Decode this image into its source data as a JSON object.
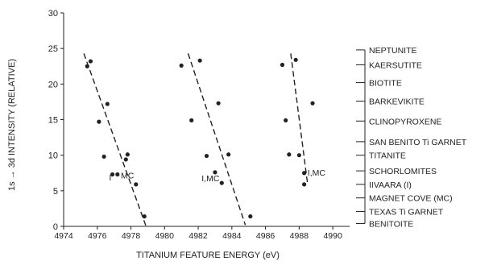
{
  "chart_data": {
    "type": "scatter",
    "title": "",
    "xlabel": "TITANIUM FEATURE ENERGY (eV)",
    "ylabel": "1s → 3d INTENSITY (RELATIVE)",
    "xlim": [
      4974,
      4991
    ],
    "ylim": [
      0,
      30
    ],
    "xticks": [
      4974,
      4976,
      4978,
      4980,
      4982,
      4984,
      4986,
      4988,
      4990
    ],
    "yticks": [
      0,
      5,
      10,
      15,
      20,
      25,
      30
    ],
    "grid": false,
    "series": [
      {
        "points": [
          {
            "x": 4975.4,
            "y": 22.5
          },
          {
            "x": 4975.6,
            "y": 23.2
          },
          {
            "x": 4976.1,
            "y": 14.7
          },
          {
            "x": 4976.6,
            "y": 17.2
          },
          {
            "x": 4976.4,
            "y": 9.8
          },
          {
            "x": 4976.9,
            "y": 7.3
          },
          {
            "x": 4977.2,
            "y": 7.3
          },
          {
            "x": 4977.8,
            "y": 10.1
          },
          {
            "x": 4977.7,
            "y": 9.4
          },
          {
            "x": 4978.3,
            "y": 5.9
          },
          {
            "x": 4978.8,
            "y": 1.4
          }
        ],
        "fit": [
          {
            "x": 4975.2,
            "y": 24.3
          },
          {
            "x": 4978.9,
            "y": 0.0
          }
        ]
      },
      {
        "points": [
          {
            "x": 4981.0,
            "y": 22.6
          },
          {
            "x": 4982.1,
            "y": 23.3
          },
          {
            "x": 4981.6,
            "y": 14.9
          },
          {
            "x": 4983.2,
            "y": 17.3
          },
          {
            "x": 4982.5,
            "y": 9.9
          },
          {
            "x": 4983.0,
            "y": 7.6
          },
          {
            "x": 4983.8,
            "y": 10.1
          },
          {
            "x": 4983.4,
            "y": 6.1
          },
          {
            "x": 4985.1,
            "y": 1.4
          }
        ],
        "fit": [
          {
            "x": 4981.4,
            "y": 24.3
          },
          {
            "x": 4984.8,
            "y": 0.2
          }
        ]
      },
      {
        "points": [
          {
            "x": 4987.0,
            "y": 22.7
          },
          {
            "x": 4987.8,
            "y": 23.4
          },
          {
            "x": 4987.2,
            "y": 14.9
          },
          {
            "x": 4988.8,
            "y": 17.3
          },
          {
            "x": 4987.4,
            "y": 10.1
          },
          {
            "x": 4988.0,
            "y": 10.0
          },
          {
            "x": 4988.3,
            "y": 7.5
          },
          {
            "x": 4988.3,
            "y": 5.9
          }
        ],
        "fit": [
          {
            "x": 4987.5,
            "y": 24.3
          },
          {
            "x": 4988.5,
            "y": 6.0
          }
        ]
      }
    ],
    "point_labels": [
      {
        "text": "I",
        "x": 4976.7,
        "y": 6.9
      },
      {
        "text": "MC",
        "x": 4977.4,
        "y": 7.2
      },
      {
        "text": "I,MC",
        "x": 4982.2,
        "y": 6.8
      },
      {
        "text": "I,MC",
        "x": 4988.5,
        "y": 7.6
      }
    ],
    "legend": [
      {
        "label": "NEPTUNITE",
        "y": 24.8
      },
      {
        "label": "KAERSUTITE",
        "y": 22.7
      },
      {
        "label": "BIOTITE",
        "y": 20.2
      },
      {
        "label": "BARKEVIKITE",
        "y": 17.6
      },
      {
        "label": "CLINOPYROXENE",
        "y": 14.8
      },
      {
        "label": "SAN BENITO Ti GARNET",
        "y": 11.9
      },
      {
        "label": "TITANITE",
        "y": 10.0
      },
      {
        "label": "SCHORLOMITES",
        "y": 7.8
      },
      {
        "label": "IIVAARA (I)",
        "y": 5.9
      },
      {
        "label": "MAGNET COVE (MC)",
        "y": 4.0
      },
      {
        "label": "TEXAS Ti GARNET",
        "y": 2.1
      },
      {
        "label": "BENITOITE",
        "y": 0.4
      }
    ],
    "legend_placement": "right"
  }
}
